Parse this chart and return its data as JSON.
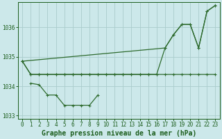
{
  "title": "Graphe pression niveau de la mer (hPa)",
  "bg_color": "#cce8ea",
  "grid_color": "#aacccc",
  "line_color": "#2d6a2d",
  "marker_color": "#2d6a2d",
  "xlim": [
    -0.5,
    23.5
  ],
  "ylim": [
    1032.9,
    1036.85
  ],
  "yticks": [
    1033,
    1034,
    1035,
    1036
  ],
  "xticks": [
    0,
    1,
    2,
    3,
    4,
    5,
    6,
    7,
    8,
    9,
    10,
    11,
    12,
    13,
    14,
    15,
    16,
    17,
    18,
    19,
    20,
    21,
    22,
    23
  ],
  "tick_color": "#1a5c1a",
  "title_color": "#1a5c1a",
  "title_fontsize": 7.0,
  "tick_fontsize": 5.5,
  "line1_x": [
    0,
    1,
    2,
    3,
    4,
    5,
    6,
    7,
    8,
    9,
    10,
    11,
    12,
    13,
    14,
    15,
    16,
    17,
    18,
    19,
    20,
    21,
    22,
    23
  ],
  "line1_y": [
    1034.85,
    1034.4,
    1034.4,
    1034.4,
    1034.4,
    1034.4,
    1034.4,
    1034.4,
    1034.4,
    1034.4,
    1034.4,
    1034.4,
    1034.4,
    1034.4,
    1034.4,
    1034.4,
    1034.4,
    1034.4,
    1034.4,
    1034.4,
    1034.4,
    1034.4,
    1034.4,
    1034.4
  ],
  "line2_x": [
    0,
    17,
    18,
    19,
    20,
    21,
    22,
    23
  ],
  "line2_y": [
    1034.85,
    1035.3,
    1035.75,
    1036.1,
    1036.1,
    1035.3,
    1036.55,
    1036.75
  ],
  "line3_x": [
    1,
    2,
    3,
    4,
    5,
    6,
    7,
    8,
    9
  ],
  "line3_y": [
    1034.1,
    1034.05,
    1033.7,
    1033.7,
    1033.35,
    1033.35,
    1033.35,
    1033.35,
    1033.7
  ],
  "line4_x": [
    0,
    1,
    2,
    3,
    4,
    5,
    6,
    7,
    8,
    9,
    10,
    11,
    12,
    13,
    14,
    15,
    16,
    17,
    18,
    19,
    20,
    21,
    22,
    23
  ],
  "line4_y": [
    1034.85,
    1034.4,
    1034.4,
    1034.4,
    1034.4,
    1034.4,
    1034.4,
    1034.4,
    1034.4,
    1034.4,
    1034.4,
    1034.4,
    1034.4,
    1034.4,
    1034.4,
    1034.4,
    1034.4,
    1035.3,
    1035.75,
    1036.1,
    1036.1,
    1035.3,
    1036.55,
    1036.75
  ]
}
